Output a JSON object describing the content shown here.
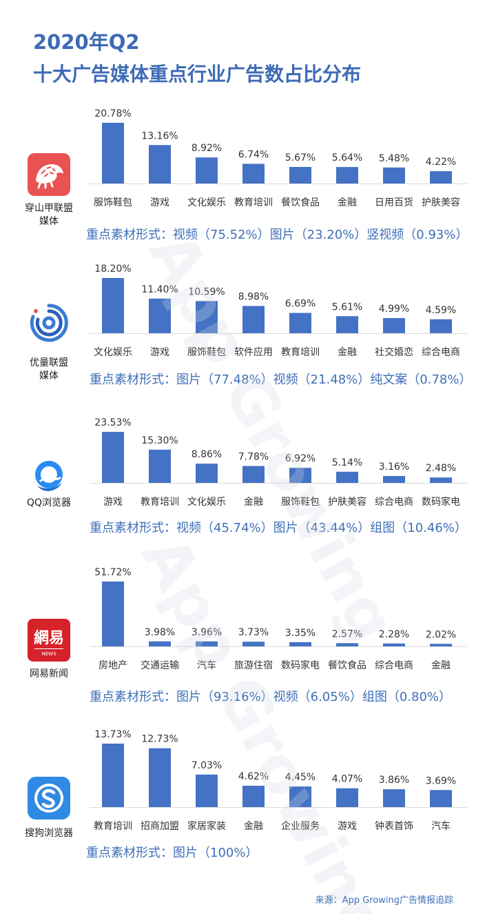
{
  "header": {
    "title_line1": "2020年Q2",
    "title_line2": "十大广告媒体重点行业广告数占比分布"
  },
  "watermark": {
    "text": "App Growing"
  },
  "source": "来源：App Growing广告情报追踪",
  "colors": {
    "bar": "#4472c4",
    "title": "#3d6bb5",
    "form_text": "#3f6fb8"
  },
  "media": [
    {
      "name_lines": [
        "穿山甲联盟",
        "媒体"
      ],
      "logo_icon": "pangolin-icon",
      "forms_text": "重点素材形式：视频（75.52%）图片（23.20%）竖视频（0.93%）",
      "chart_data": {
        "type": "bar",
        "categories": [
          "服饰鞋包",
          "游戏",
          "文化娱乐",
          "教育培训",
          "餐饮食品",
          "金融",
          "日用百货",
          "护肤美容"
        ],
        "values": [
          20.78,
          13.16,
          8.92,
          6.74,
          5.67,
          5.64,
          5.48,
          4.22
        ],
        "value_labels": [
          "20.78%",
          "13.16%",
          "8.92%",
          "6.74%",
          "5.67%",
          "5.64%",
          "5.48%",
          "4.22%"
        ],
        "ylim": [
          0,
          20.78
        ]
      }
    },
    {
      "name_lines": [
        "优量联盟",
        "媒体"
      ],
      "logo_icon": "youliang-spiral-icon",
      "forms_text": "重点素材形式：图片（77.48%）视频（21.48%）纯文案（0.78%）",
      "chart_data": {
        "type": "bar",
        "categories": [
          "文化娱乐",
          "游戏",
          "服饰鞋包",
          "软件应用",
          "教育培训",
          "金融",
          "社交婚恋",
          "综合电商"
        ],
        "values": [
          18.2,
          11.4,
          10.59,
          8.98,
          6.69,
          5.61,
          4.99,
          4.59
        ],
        "value_labels": [
          "18.20%",
          "11.40%",
          "10.59%",
          "8.98%",
          "6.69%",
          "5.61%",
          "4.99%",
          "4.59%"
        ],
        "ylim": [
          0,
          18.2
        ]
      }
    },
    {
      "name_lines": [
        "QQ浏览器"
      ],
      "logo_icon": "qq-browser-icon",
      "forms_text": "重点素材形式：视频（45.74%）图片（43.44%）组图（10.46%）",
      "chart_data": {
        "type": "bar",
        "categories": [
          "游戏",
          "教育培训",
          "文化娱乐",
          "金融",
          "服饰鞋包",
          "护肤美容",
          "综合电商",
          "数码家电"
        ],
        "values": [
          23.53,
          15.3,
          8.86,
          7.78,
          6.92,
          5.14,
          3.16,
          2.48
        ],
        "value_labels": [
          "23.53%",
          "15.30%",
          "8.86%",
          "7.78%",
          "6.92%",
          "5.14%",
          "3.16%",
          "2.48%"
        ],
        "ylim": [
          0,
          23.53
        ]
      }
    },
    {
      "name_lines": [
        "网易新闻"
      ],
      "logo_icon": "netease-news-icon",
      "logo_text": "網易",
      "logo_subtext": "NEWS",
      "forms_text": "重点素材形式：图片（93.16%）视频（6.05%）组图（0.80%）",
      "chart_data": {
        "type": "bar",
        "categories": [
          "房地产",
          "交通运输",
          "汽车",
          "旅游住宿",
          "数码家电",
          "餐饮食品",
          "综合电商",
          "金融"
        ],
        "values": [
          51.72,
          3.98,
          3.96,
          3.73,
          3.35,
          2.57,
          2.28,
          2.02
        ],
        "value_labels": [
          "51.72%",
          "3.98%",
          "3.96%",
          "3.73%",
          "3.35%",
          "2.57%",
          "2.28%",
          "2.02%"
        ],
        "ylim": [
          0,
          51.72
        ]
      }
    },
    {
      "name_lines": [
        "搜狗浏览器"
      ],
      "logo_icon": "sogou-browser-icon",
      "forms_text": "重点素材形式：图片（100%）",
      "chart_data": {
        "type": "bar",
        "categories": [
          "教育培训",
          "招商加盟",
          "家居家装",
          "金融",
          "企业服务",
          "游戏",
          "钟表首饰",
          "汽车"
        ],
        "values": [
          13.73,
          12.73,
          7.03,
          4.62,
          4.45,
          4.07,
          3.86,
          3.69
        ],
        "value_labels": [
          "13.73%",
          "12.73%",
          "7.03%",
          "4.62%",
          "4.45%",
          "4.07%",
          "3.86%",
          "3.69%"
        ],
        "ylim": [
          0,
          13.73
        ]
      }
    }
  ]
}
